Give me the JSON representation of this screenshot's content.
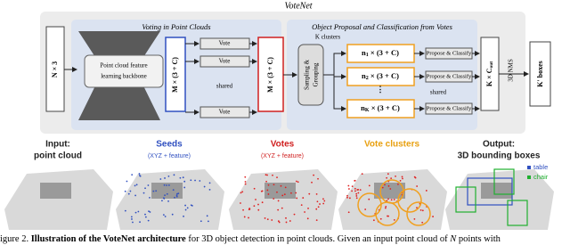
{
  "figure": {
    "title": "VoteNet",
    "panel_voting": "Voting in Point Clouds",
    "panel_proposal": "Object Proposal and Classification from Votes",
    "input_dims": "N × 3",
    "backbone": [
      "Point cloud feature",
      "learning backbone"
    ],
    "seed_dims": "M × (3 + C)",
    "vote_modules": [
      "Vote",
      "Vote",
      "Vote"
    ],
    "vote_shared": "shared",
    "vote_dims": "M × (3 + C)",
    "k_clusters": "K clusters",
    "sampling": [
      "Sampling &",
      "Grouping"
    ],
    "clusters": [
      {
        "n": "n",
        "sub": "1",
        "dims": " × (3 + C)"
      },
      {
        "n": "n",
        "sub": "2",
        "dims": " × (3 + C)"
      },
      {
        "n": "n",
        "sub": "K",
        "dims": " × (3 + C)"
      }
    ],
    "cluster_ellipsis": "⋮",
    "classifiers": [
      "Propose & Classify",
      "Propose & Classify",
      "Propose & Classify"
    ],
    "classify_shared": "shared",
    "output_dims": {
      "main": "K × C",
      "sub": "out"
    },
    "nms": "3D NMS",
    "final": "K' boxes",
    "stages": [
      {
        "line1": "Input:",
        "line2": "point cloud"
      },
      {
        "line1": "Seeds",
        "line2": "(XYZ + feature)"
      },
      {
        "line1": "Votes",
        "line2": "(XYZ + feature)"
      },
      {
        "line1": "Vote clusters"
      },
      {
        "line1": "Output:",
        "line2": "3D bounding boxes"
      }
    ],
    "legend": [
      "table",
      "chair"
    ],
    "caption": {
      "prefix": "igure 2. ",
      "bold": "Illustration of the VoteNet architecture",
      "text": " for 3D object detection in point clouds. Given an input point cloud of ",
      "var": "N",
      "rest": " points with"
    }
  }
}
